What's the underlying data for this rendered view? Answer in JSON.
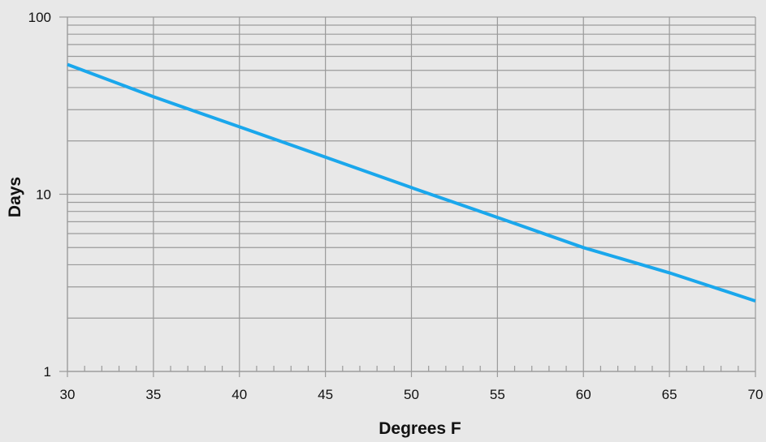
{
  "chart_data": {
    "type": "line",
    "title": "",
    "xlabel": "Degrees F",
    "ylabel": "Days",
    "xscale": "linear",
    "yscale": "log",
    "xlim": [
      30,
      70
    ],
    "ylim": [
      1,
      100
    ],
    "x_ticks": [
      30,
      35,
      40,
      45,
      50,
      55,
      60,
      65,
      70
    ],
    "x_tick_labels": [
      "30",
      "35",
      "40",
      "45",
      "50",
      "55",
      "60",
      "65",
      "70"
    ],
    "x_minor_step": 1,
    "y_ticks": [
      1,
      10,
      100
    ],
    "y_tick_labels": [
      "1",
      "10",
      "100"
    ],
    "grid": true,
    "legend": "none",
    "series": [
      {
        "x": [
          30,
          35,
          40,
          45,
          50,
          55,
          60,
          65,
          70
        ],
        "y": [
          54,
          35.5,
          24,
          16.2,
          10.9,
          7.4,
          5.0,
          3.6,
          2.5
        ],
        "color": "#1aa7ec"
      }
    ]
  }
}
